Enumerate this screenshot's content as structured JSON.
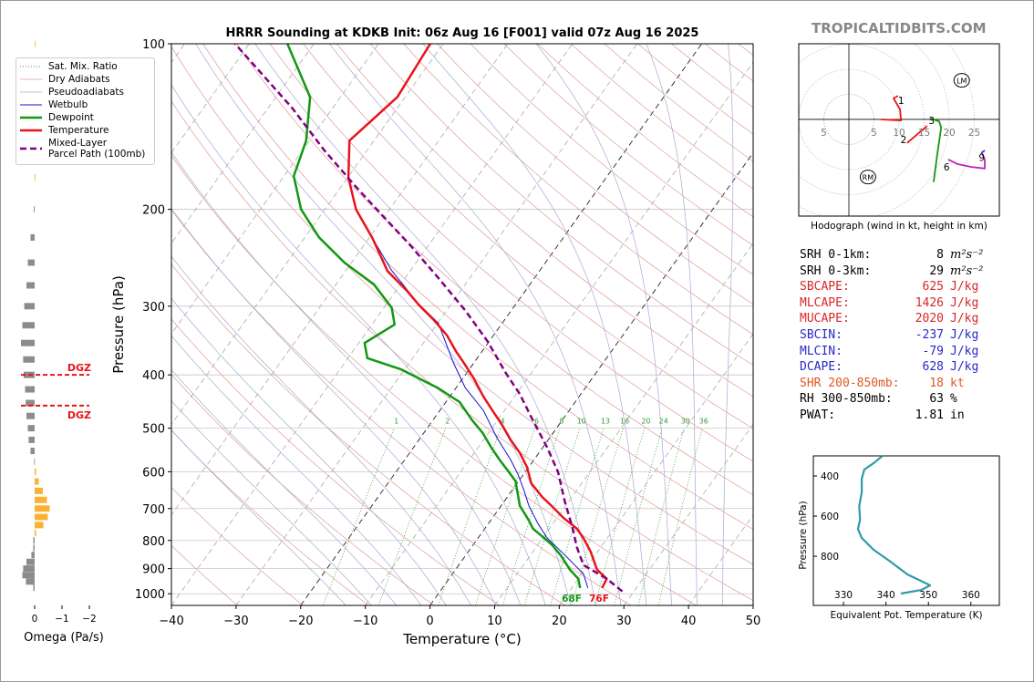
{
  "site": "TROPICALTIDBITS.COM",
  "chart_data": [
    {
      "type": "skewt",
      "title": "HRRR Sounding at KDKB Init: 06z Aug 16 [F001] valid 07z Aug 16 2025",
      "xlabel": "Temperature (°C)",
      "ylabel": "Pressure (hPa)",
      "xlim": [
        -40,
        50
      ],
      "xticks": [
        {
          "value": -40,
          "label": "−40"
        },
        {
          "value": -30,
          "label": "−30"
        },
        {
          "value": -20,
          "label": "−20"
        },
        {
          "value": -10,
          "label": "−10"
        },
        0,
        10,
        20,
        30,
        40,
        50
      ],
      "ylim": [
        1050,
        100
      ],
      "yscale": "log",
      "yticks": [
        100,
        200,
        300,
        400,
        500,
        600,
        700,
        800,
        900,
        1000
      ],
      "grid": true,
      "reference_lines": [
        {
          "name": "Sat. Mix. Ratio",
          "color": "#7a7a7a",
          "style": "dotted"
        },
        {
          "name": "Dry Adiabats",
          "color": "#e09a9a",
          "style": "thin"
        },
        {
          "name": "Pseudoadiabats",
          "color": "#a8a8d8",
          "style": "thin"
        }
      ],
      "mixing_ratio_labels": [
        1,
        2,
        4,
        6,
        8,
        10,
        13,
        16,
        20,
        24,
        30,
        36
      ],
      "mixing_ratio_color": "#3a9a3a",
      "series": [
        {
          "name": "Wetbulb",
          "color": "#1010d0",
          "style": "thin",
          "pressure": [
            976,
            921,
            853,
            792,
            746,
            692,
            653,
            606,
            572,
            520,
            464,
            422,
            380,
            322,
            296,
            258,
            226
          ],
          "values": [
            22.5,
            20.3,
            15.5,
            10.7,
            7.7,
            4.3,
            2.1,
            -0.9,
            -3.5,
            -8.2,
            -13.3,
            -18.6,
            -23.2,
            -29.9,
            -35.3,
            -43.0,
            -49.4
          ]
        },
        {
          "name": "Dewpoint",
          "color": "#119911",
          "style": "thick",
          "pressure": [
            976,
            939,
            904,
            853,
            815,
            786,
            762,
            734,
            692,
            653,
            624,
            601,
            572,
            545,
            511,
            483,
            448,
            422,
            391,
            373,
            350,
            324,
            302,
            274,
            250,
            225,
            200,
            174,
            150,
            125,
            100
          ],
          "values": [
            21.3,
            20.0,
            17.7,
            14.8,
            12.2,
            9.7,
            7.5,
            5.8,
            2.9,
            1.0,
            -0.5,
            -2.5,
            -5.2,
            -7.7,
            -10.8,
            -14.0,
            -17.9,
            -22.9,
            -30.5,
            -37.0,
            -39.1,
            -36.5,
            -38.8,
            -44.1,
            -51.1,
            -57.8,
            -63.7,
            -68.5,
            -70.5,
            -74.7,
            -84.1
          ]
        },
        {
          "name": "Temperature",
          "color": "#e8141a",
          "style": "thick",
          "pressure": [
            976,
            939,
            904,
            838,
            792,
            762,
            728,
            692,
            667,
            630,
            588,
            555,
            524,
            491,
            464,
            438,
            406,
            383,
            362,
            339,
            317,
            299,
            280,
            259,
            226,
            200,
            175,
            150,
            125,
            100
          ],
          "values": [
            24.7,
            24.4,
            21.9,
            18.9,
            16.3,
            14.3,
            11.0,
            7.8,
            5.4,
            2.2,
            -0.3,
            -2.9,
            -5.9,
            -9.0,
            -11.9,
            -14.8,
            -18.3,
            -21.2,
            -24.1,
            -27.2,
            -31.1,
            -34.8,
            -38.6,
            -43.5,
            -49.4,
            -55.2,
            -59.9,
            -63.8,
            -61.2,
            -62.0
          ]
        },
        {
          "name": "Mixed-Layer\nParcel Path (100mb)",
          "color": "#800080",
          "style": "dashed",
          "pressure": [
            990,
            939,
            887,
            823,
            757,
            680,
            601,
            541,
            483,
            433,
            398,
            348,
            305,
            266,
            233,
            205,
            182,
            156,
            131,
            100
          ],
          "values": [
            28.2,
            24.4,
            19.3,
            16.3,
            13.4,
            9.4,
            5.1,
            0.6,
            -4.6,
            -9.5,
            -13.8,
            -20.2,
            -27.2,
            -35.0,
            -42.7,
            -50.5,
            -57.7,
            -66.7,
            -76.2,
            -92.2
          ]
        }
      ],
      "surface_labels": [
        {
          "text": "68F",
          "color": "#119911"
        },
        {
          "text": "76F",
          "color": "#e8141a"
        }
      ]
    },
    {
      "type": "omega_bars",
      "xlabel": "Omega (Pa/s)",
      "xlim": [
        0.5,
        -2.2
      ],
      "xticks": [
        0,
        {
          "value": -1,
          "label": "−1"
        },
        {
          "value": -2,
          "label": "−2"
        }
      ],
      "pressure": [
        100,
        125,
        150,
        175,
        200,
        225,
        250,
        275,
        300,
        325,
        350,
        375,
        400,
        425,
        450,
        475,
        500,
        525,
        550,
        575,
        600,
        625,
        650,
        675,
        700,
        725,
        750,
        775,
        800,
        825,
        850,
        875,
        900,
        925,
        950,
        975
      ],
      "values": [
        -0.02,
        -0.03,
        -0.03,
        -0.03,
        0.03,
        0.15,
        0.25,
        0.3,
        0.38,
        0.45,
        0.5,
        0.42,
        0.4,
        0.35,
        0.33,
        0.3,
        0.25,
        0.22,
        0.15,
        0.02,
        -0.05,
        -0.15,
        -0.3,
        -0.45,
        -0.55,
        -0.48,
        -0.32,
        -0.05,
        0.05,
        0.05,
        0.12,
        0.3,
        0.42,
        0.45,
        0.32,
        0.05
      ],
      "colors": {
        "positive": "#8c8c8c",
        "negative": "#f9b233"
      },
      "dgz": {
        "pressure": [
          400,
          455
        ],
        "labels": [
          "DGZ",
          "DGZ"
        ],
        "color": "#e8141a"
      }
    },
    {
      "type": "hodograph",
      "caption": "Hodograph (wind in kt, height in km)",
      "xlim": [
        -10,
        30
      ],
      "ylim": [
        -19.3,
        15.1
      ],
      "xticks": [
        {
          "value": -5,
          "label": "5"
        },
        5,
        10,
        15,
        20,
        25
      ],
      "segments": [
        {
          "color": "#e8141a",
          "u": [
            6.4,
            10.4,
            10.2,
            8.9,
            9.8
          ],
          "v": [
            0,
            -0.2,
            2.0,
            4.2,
            4.7
          ]
        },
        {
          "color": "#e8141a",
          "u": [
            11.6,
            15.6
          ],
          "v": [
            -4.7,
            -1.3
          ]
        },
        {
          "color": "#119911",
          "u": [
            16.2,
            18,
            18.4,
            17.6,
            16.9
          ],
          "v": [
            0.2,
            -0.4,
            -1.6,
            -7.1,
            -12.5
          ]
        },
        {
          "color": "#c020c0",
          "u": [
            19.8,
            21.6,
            24.4,
            27.1,
            27.1,
            26.5
          ],
          "v": [
            -8,
            -8.9,
            -9.5,
            -9.8,
            -8,
            -6.7
          ]
        },
        {
          "color": "#2040ff",
          "u": [
            26.4,
            27.1
          ],
          "v": [
            -6.7,
            -6.2
          ]
        }
      ],
      "height_labels": [
        {
          "height": 1,
          "u": 10.4,
          "v": 3.8
        },
        {
          "height": 2,
          "u": 10.9,
          "v": -4
        },
        {
          "height": 3,
          "u": 16.5,
          "v": -0.2
        },
        {
          "height": 6,
          "u": 19.5,
          "v": -9.5
        },
        {
          "height": 9,
          "u": 26.5,
          "v": -7.6
        }
      ],
      "storm_motion": [
        {
          "label": "RM",
          "u": 3.8,
          "v": -11.5
        },
        {
          "label": "LM",
          "u": 22.5,
          "v": 7.8
        }
      ]
    },
    {
      "type": "line",
      "xlabel": "Equivalent Pot. Temperature (K)",
      "ylabel": "Pressure (hPa)",
      "xlim": [
        322.9,
        366.7
      ],
      "xticks": [
        330,
        340,
        350,
        360
      ],
      "ylim": [
        1045,
        300
      ],
      "yticks": [
        400,
        600,
        800
      ],
      "color": "#2f9aa8",
      "values": [
        339.2,
        337.1,
        334.9,
        334.3,
        334.3,
        333.7,
        333.9,
        333.4,
        334.3,
        337.1,
        340.8,
        345.1,
        350.4,
        348.3,
        343.5
      ],
      "pressure": [
        300,
        336,
        368,
        414,
        482,
        550,
        618,
        664,
        709,
        768,
        823,
        891,
        945,
        968,
        986
      ]
    }
  ],
  "indices": [
    {
      "label": "SRH 0-1km:",
      "value": 8,
      "unit": "m²s⁻²",
      "color": "#000000"
    },
    {
      "label": "SRH 0-3km:",
      "value": 29,
      "unit": "m²s⁻²",
      "color": "#000000"
    },
    {
      "label": "SBCAPE:",
      "value": 625,
      "unit": "J/kg",
      "color": "#d62728"
    },
    {
      "label": "MLCAPE:",
      "value": 1426,
      "unit": "J/kg",
      "color": "#d62728"
    },
    {
      "label": "MUCAPE:",
      "value": 2020,
      "unit": "J/kg",
      "color": "#d62728"
    },
    {
      "label": "SBCIN:",
      "value": -237,
      "unit": "J/kg",
      "color": "#2828c8"
    },
    {
      "label": "MLCIN:",
      "value": -79,
      "unit": "J/kg",
      "color": "#2828c8"
    },
    {
      "label": "DCAPE:",
      "value": 628,
      "unit": "J/kg",
      "color": "#2828c8"
    },
    {
      "label": "SHR 200-850mb:",
      "value": 18,
      "unit": "kt",
      "color": "#e2571e"
    },
    {
      "label": "RH 300-850mb:",
      "value": 63,
      "unit": "%",
      "color": "#000000"
    },
    {
      "label": "PWAT:",
      "value": 1.81,
      "unit": "in",
      "color": "#000000"
    }
  ]
}
